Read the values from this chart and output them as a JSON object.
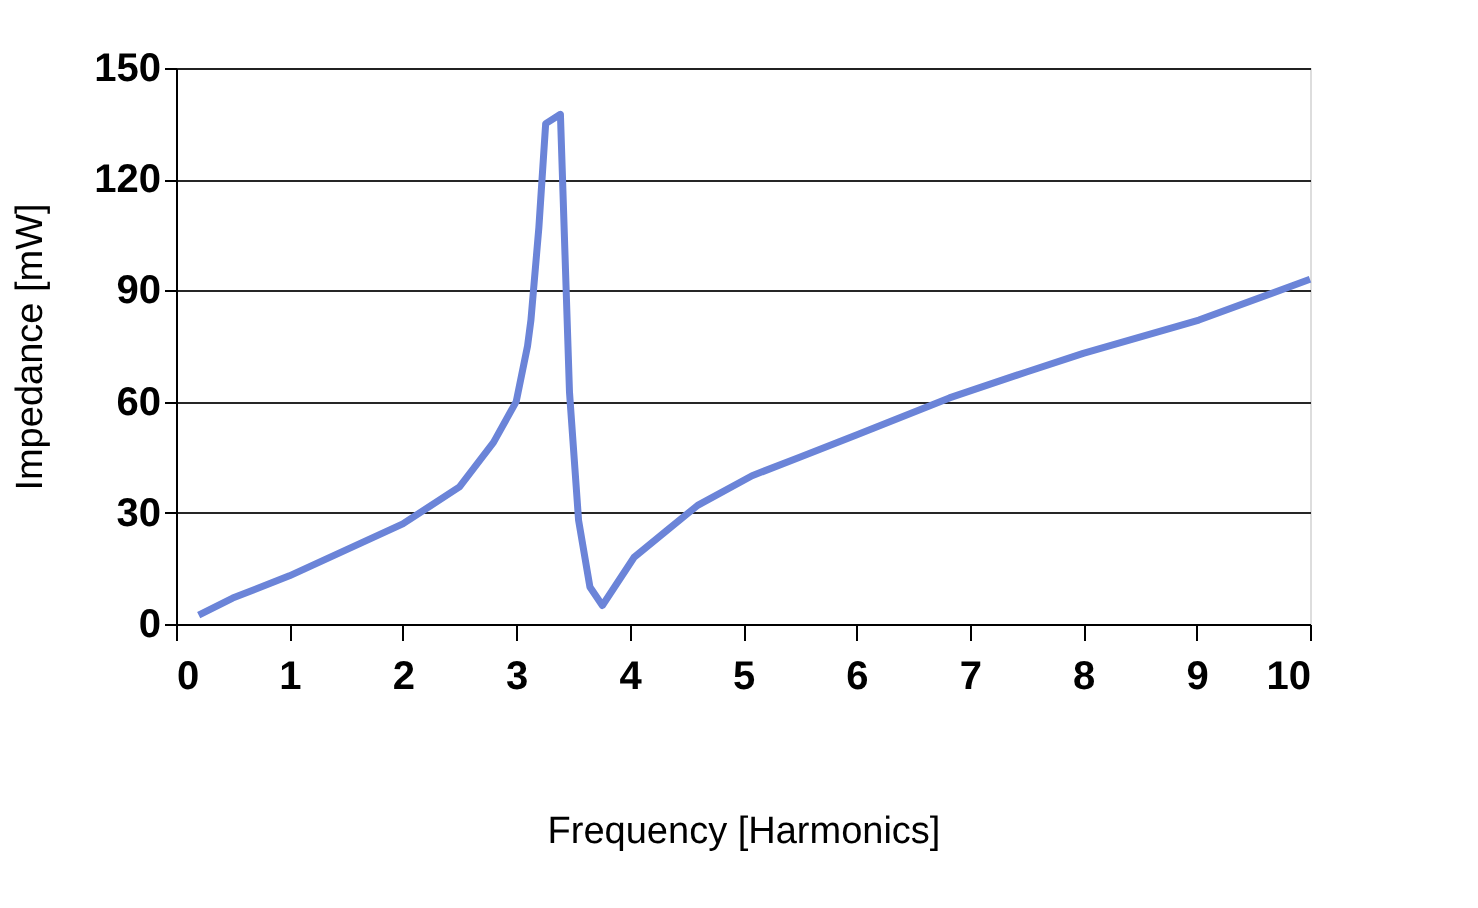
{
  "chart_data": {
    "type": "line",
    "xlabel": "Frequency [Harmonics]",
    "ylabel": "Impedance  [mW]",
    "xlim": [
      0,
      10
    ],
    "xticks": [
      0,
      1,
      2,
      3,
      4,
      5,
      6,
      7,
      8,
      9,
      10
    ],
    "ylim": [
      0,
      150
    ],
    "yticks": [
      0,
      30,
      60,
      90,
      120,
      150
    ],
    "grid": "y",
    "legend": false,
    "marker": "none",
    "line_style": "solid",
    "series": [
      {
        "color": "#6b84d8",
        "x": [
          0.2,
          0.5,
          1,
          1.5,
          2,
          2.5,
          2.8,
          3,
          3.1,
          3.13,
          3.2,
          3.26,
          3.39,
          3.47,
          3.55,
          3.65,
          3.76,
          4.04,
          4.32,
          4.6,
          5.08,
          5.5,
          6,
          6.82,
          7.5,
          8,
          9.02,
          10
        ],
        "values": [
          2.4,
          7,
          13,
          20,
          27,
          37,
          49,
          60,
          75,
          82,
          107,
          135,
          137.5,
          62.5,
          28,
          10,
          5,
          18,
          25,
          32,
          40,
          45,
          51,
          61,
          68,
          73,
          82,
          93
        ]
      }
    ]
  }
}
